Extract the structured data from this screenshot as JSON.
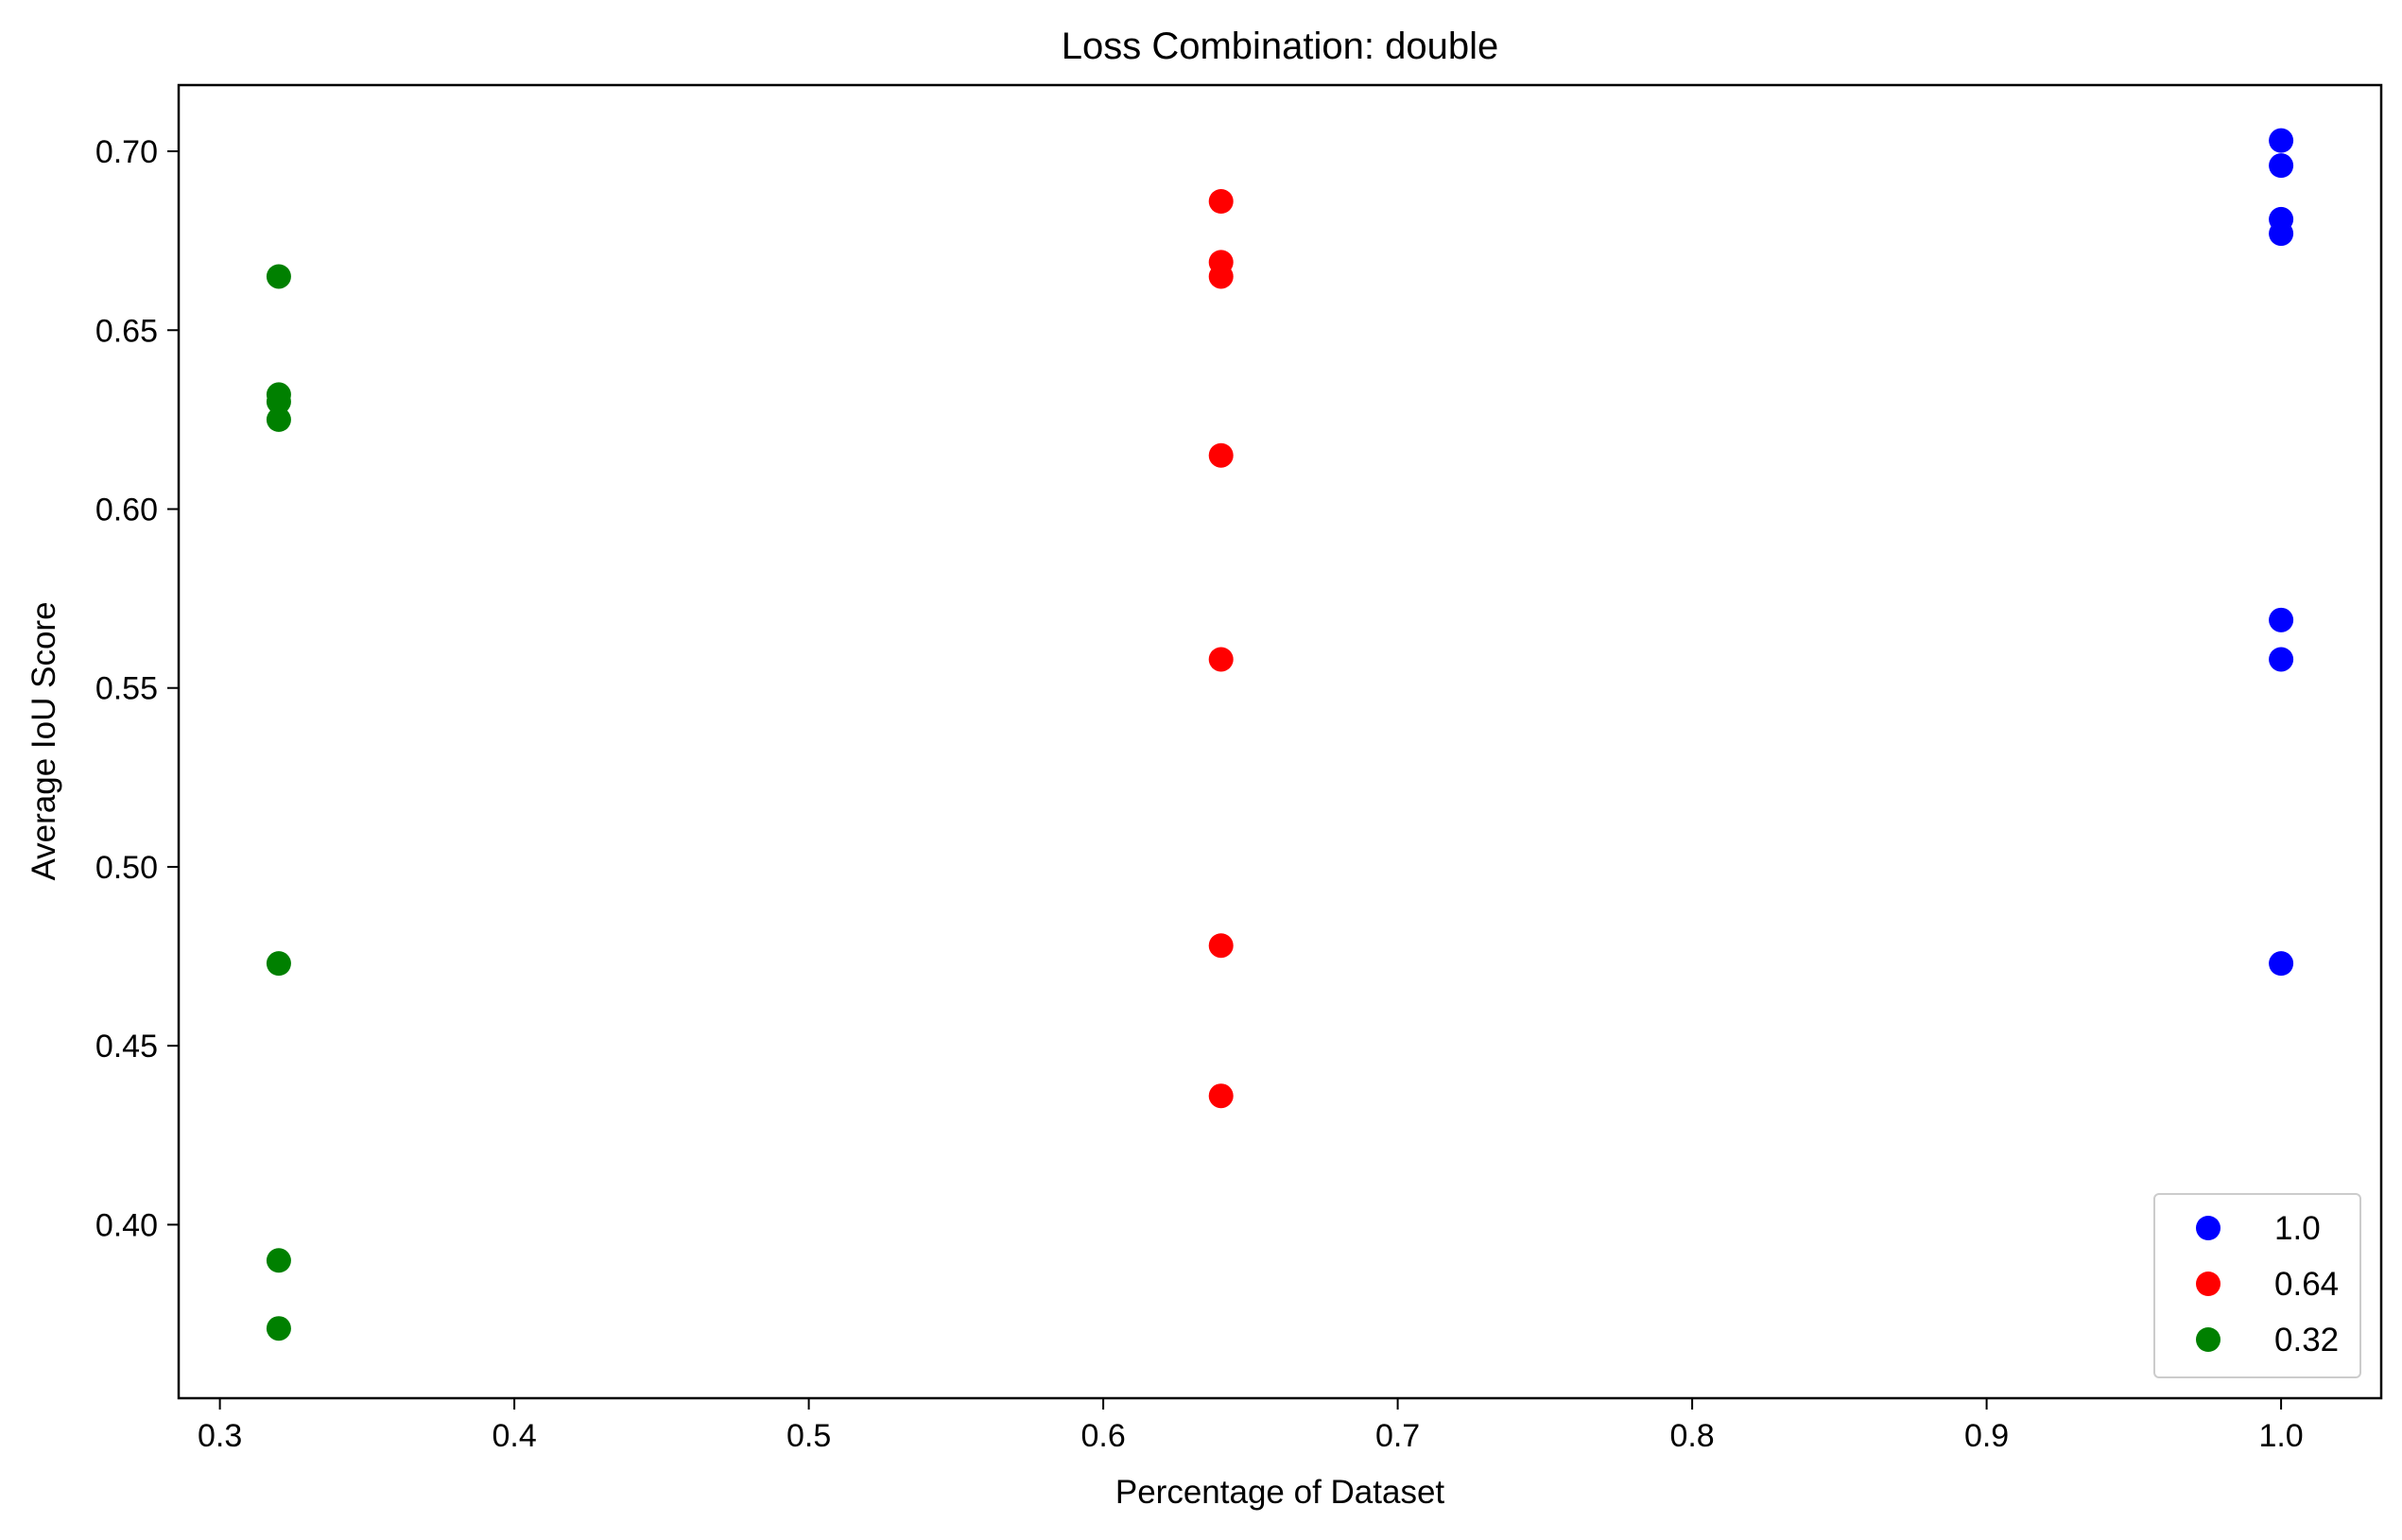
{
  "chart_data": {
    "type": "scatter",
    "title": "Loss Combination: double",
    "xlabel": "Percentage of Dataset",
    "ylabel": "Average IoU Score",
    "xlim": [
      0.286,
      1.034
    ],
    "ylim": [
      0.3515,
      0.7185
    ],
    "xticks": [
      0.3,
      0.4,
      0.5,
      0.6,
      0.7,
      0.8,
      0.9,
      1.0
    ],
    "xtick_labels": [
      "0.3",
      "0.4",
      "0.5",
      "0.6",
      "0.7",
      "0.8",
      "0.9",
      "1.0"
    ],
    "yticks": [
      0.4,
      0.45,
      0.5,
      0.55,
      0.6,
      0.65,
      0.7
    ],
    "ytick_labels": [
      "0.40",
      "0.45",
      "0.50",
      "0.55",
      "0.60",
      "0.65",
      "0.70"
    ],
    "grid": false,
    "legend_position": "bottom-right",
    "series": [
      {
        "name": "1.0",
        "color": "#0000ff",
        "points": [
          {
            "x": 1.0,
            "y": 0.703
          },
          {
            "x": 1.0,
            "y": 0.696
          },
          {
            "x": 1.0,
            "y": 0.681
          },
          {
            "x": 1.0,
            "y": 0.677
          },
          {
            "x": 1.0,
            "y": 0.569
          },
          {
            "x": 1.0,
            "y": 0.558
          },
          {
            "x": 1.0,
            "y": 0.473
          }
        ]
      },
      {
        "name": "0.64",
        "color": "#ff0000",
        "points": [
          {
            "x": 0.64,
            "y": 0.686
          },
          {
            "x": 0.64,
            "y": 0.669
          },
          {
            "x": 0.64,
            "y": 0.665
          },
          {
            "x": 0.64,
            "y": 0.615
          },
          {
            "x": 0.64,
            "y": 0.558
          },
          {
            "x": 0.64,
            "y": 0.478
          },
          {
            "x": 0.64,
            "y": 0.436
          }
        ]
      },
      {
        "name": "0.32",
        "color": "#008000",
        "points": [
          {
            "x": 0.32,
            "y": 0.665
          },
          {
            "x": 0.32,
            "y": 0.632
          },
          {
            "x": 0.32,
            "y": 0.63
          },
          {
            "x": 0.32,
            "y": 0.625
          },
          {
            "x": 0.32,
            "y": 0.473
          },
          {
            "x": 0.32,
            "y": 0.39
          },
          {
            "x": 0.32,
            "y": 0.371
          }
        ]
      }
    ]
  }
}
